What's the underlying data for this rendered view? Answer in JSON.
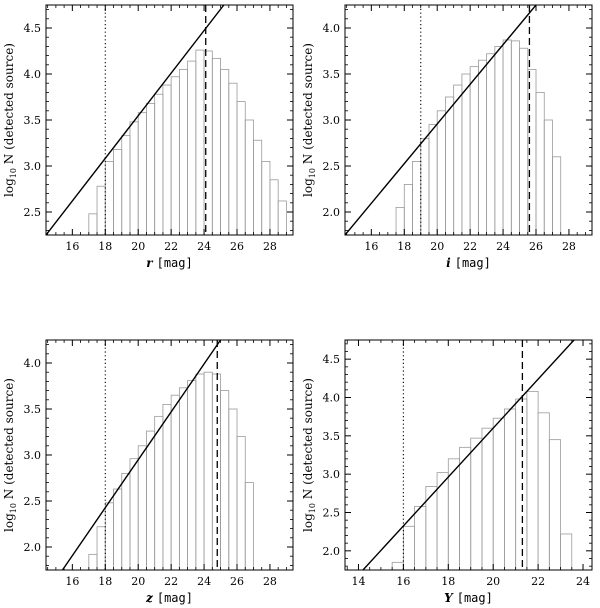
{
  "chart_data": [
    {
      "type": "bar",
      "panel": "top-left",
      "xlabel_var": "r",
      "xlabel_unit": "[mag]",
      "ylabel_prefix": "log",
      "ylabel_sub": "10",
      "ylabel_rest": " N (detected source)",
      "xlim": [
        14.4,
        29.4
      ],
      "ylim": [
        2.25,
        4.75
      ],
      "xticks": [
        16,
        18,
        20,
        22,
        24,
        26,
        28
      ],
      "yticks": [
        2.5,
        3.0,
        3.5,
        4.0,
        4.5
      ],
      "ytick_labels": [
        "2.5",
        "3.0",
        "3.5",
        "4.0",
        "4.5"
      ],
      "bin_width": 0.5,
      "bins": [
        [
          17.0,
          2.48
        ],
        [
          17.5,
          2.78
        ],
        [
          18.0,
          3.05
        ],
        [
          18.5,
          3.18
        ],
        [
          19.0,
          3.33
        ],
        [
          19.5,
          3.48
        ],
        [
          20.0,
          3.58
        ],
        [
          20.5,
          3.68
        ],
        [
          21.0,
          3.78
        ],
        [
          21.5,
          3.88
        ],
        [
          22.0,
          3.97
        ],
        [
          22.5,
          4.05
        ],
        [
          23.0,
          4.14
        ],
        [
          23.5,
          4.26
        ],
        [
          24.0,
          4.25
        ],
        [
          24.5,
          4.17
        ],
        [
          25.0,
          4.05
        ],
        [
          25.5,
          3.9
        ],
        [
          26.0,
          3.7
        ],
        [
          26.5,
          3.5
        ],
        [
          27.0,
          3.28
        ],
        [
          27.5,
          3.05
        ],
        [
          28.0,
          2.85
        ],
        [
          28.5,
          2.62
        ]
      ],
      "fit_line": [
        [
          14.4,
          2.25
        ],
        [
          25.2,
          4.75
        ]
      ],
      "dotted_line_x": 18.0,
      "dashed_line_x": 24.1
    },
    {
      "type": "bar",
      "panel": "top-right",
      "xlabel_var": "i",
      "xlabel_unit": "[mag]",
      "ylabel_prefix": "log",
      "ylabel_sub": "10",
      "ylabel_rest": " N (detected source)",
      "xlim": [
        14.4,
        29.4
      ],
      "ylim": [
        1.75,
        4.25
      ],
      "xticks": [
        16,
        18,
        20,
        22,
        24,
        26,
        28
      ],
      "yticks": [
        2.0,
        2.5,
        3.0,
        3.5,
        4.0
      ],
      "ytick_labels": [
        "2.0",
        "2.5",
        "3.0",
        "3.5",
        "4.0"
      ],
      "bin_width": 0.5,
      "bins": [
        [
          17.5,
          2.05
        ],
        [
          18.0,
          2.3
        ],
        [
          18.5,
          2.55
        ],
        [
          19.0,
          2.8
        ],
        [
          19.5,
          2.95
        ],
        [
          20.0,
          3.1
        ],
        [
          20.5,
          3.25
        ],
        [
          21.0,
          3.38
        ],
        [
          21.5,
          3.5
        ],
        [
          22.0,
          3.58
        ],
        [
          22.5,
          3.65
        ],
        [
          23.0,
          3.72
        ],
        [
          23.5,
          3.8
        ],
        [
          24.0,
          3.87
        ],
        [
          24.5,
          3.86
        ],
        [
          25.0,
          3.78
        ],
        [
          25.5,
          3.55
        ],
        [
          26.0,
          3.3
        ],
        [
          26.5,
          3.0
        ],
        [
          27.0,
          2.6
        ]
      ],
      "fit_line": [
        [
          14.4,
          1.75
        ],
        [
          26.0,
          4.25
        ]
      ],
      "dotted_line_x": 19.0,
      "dashed_line_x": 25.6
    },
    {
      "type": "bar",
      "panel": "bottom-left",
      "xlabel_var": "z",
      "xlabel_unit": "[mag]",
      "ylabel_prefix": "log",
      "ylabel_sub": "10",
      "ylabel_rest": " N (detected source)",
      "xlim": [
        14.4,
        29.4
      ],
      "ylim": [
        1.75,
        4.25
      ],
      "xticks": [
        16,
        18,
        20,
        22,
        24,
        26,
        28
      ],
      "yticks": [
        2.0,
        2.5,
        3.0,
        3.5,
        4.0
      ],
      "ytick_labels": [
        "2.0",
        "2.5",
        "3.0",
        "3.5",
        "4.0"
      ],
      "bin_width": 0.5,
      "bins": [
        [
          17.0,
          1.92
        ],
        [
          17.5,
          2.22
        ],
        [
          18.0,
          2.48
        ],
        [
          18.5,
          2.63
        ],
        [
          19.0,
          2.8
        ],
        [
          19.5,
          2.96
        ],
        [
          20.0,
          3.1
        ],
        [
          20.5,
          3.26
        ],
        [
          21.0,
          3.42
        ],
        [
          21.5,
          3.55
        ],
        [
          22.0,
          3.65
        ],
        [
          22.5,
          3.73
        ],
        [
          23.0,
          3.81
        ],
        [
          23.5,
          3.88
        ],
        [
          24.0,
          3.9
        ],
        [
          24.5,
          3.88
        ],
        [
          25.0,
          3.7
        ],
        [
          25.5,
          3.5
        ],
        [
          26.0,
          3.2
        ],
        [
          26.5,
          2.7
        ]
      ],
      "fit_line": [
        [
          15.4,
          1.75
        ],
        [
          25.0,
          4.25
        ]
      ],
      "dotted_line_x": 18.0,
      "dashed_line_x": 24.8
    },
    {
      "type": "bar",
      "panel": "bottom-right",
      "xlabel_var": "Y",
      "xlabel_unit": "[mag]",
      "ylabel_prefix": "log",
      "ylabel_sub": "10",
      "ylabel_rest": " N (detected source)",
      "xlim": [
        13.4,
        24.4
      ],
      "ylim": [
        1.75,
        4.75
      ],
      "xticks": [
        14,
        16,
        18,
        20,
        22,
        24
      ],
      "yticks": [
        2.0,
        2.5,
        3.0,
        3.5,
        4.0,
        4.5
      ],
      "ytick_labels": [
        "2.0",
        "2.5",
        "3.0",
        "3.5",
        "4.0",
        "4.5"
      ],
      "bin_width": 0.5,
      "bins": [
        [
          15.5,
          1.85
        ],
        [
          16.0,
          2.32
        ],
        [
          16.5,
          2.58
        ],
        [
          17.0,
          2.84
        ],
        [
          17.5,
          3.02
        ],
        [
          18.0,
          3.2
        ],
        [
          18.5,
          3.35
        ],
        [
          19.0,
          3.47
        ],
        [
          19.5,
          3.6
        ],
        [
          20.0,
          3.73
        ],
        [
          20.5,
          3.85
        ],
        [
          21.0,
          3.98
        ],
        [
          21.5,
          4.08
        ],
        [
          22.0,
          3.8
        ],
        [
          22.5,
          3.45
        ],
        [
          23.0,
          2.22
        ]
      ],
      "fit_line": [
        [
          14.2,
          1.75
        ],
        [
          23.6,
          4.75
        ]
      ],
      "dotted_line_x": 16.0,
      "dashed_line_x": 21.3
    }
  ]
}
